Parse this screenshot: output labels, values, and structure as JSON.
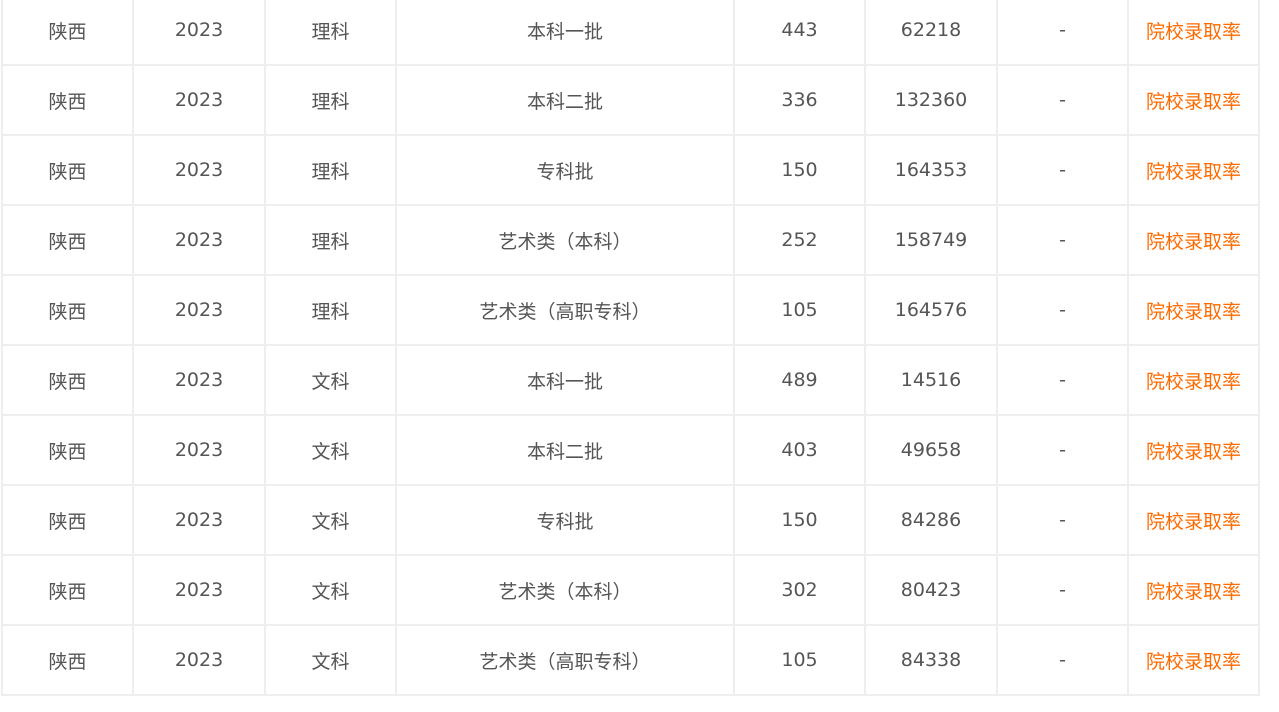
{
  "table": {
    "link_color": "#ff6a00",
    "rows": [
      {
        "province": "陕西",
        "year": "2023",
        "category": "理科",
        "batch": "本科一批",
        "score": "443",
        "rank": "62218",
        "extra": "-",
        "link": "院校录取率"
      },
      {
        "province": "陕西",
        "year": "2023",
        "category": "理科",
        "batch": "本科二批",
        "score": "336",
        "rank": "132360",
        "extra": "-",
        "link": "院校录取率"
      },
      {
        "province": "陕西",
        "year": "2023",
        "category": "理科",
        "batch": "专科批",
        "score": "150",
        "rank": "164353",
        "extra": "-",
        "link": "院校录取率"
      },
      {
        "province": "陕西",
        "year": "2023",
        "category": "理科",
        "batch": "艺术类（本科）",
        "score": "252",
        "rank": "158749",
        "extra": "-",
        "link": "院校录取率"
      },
      {
        "province": "陕西",
        "year": "2023",
        "category": "理科",
        "batch": "艺术类（高职专科）",
        "score": "105",
        "rank": "164576",
        "extra": "-",
        "link": "院校录取率"
      },
      {
        "province": "陕西",
        "year": "2023",
        "category": "文科",
        "batch": "本科一批",
        "score": "489",
        "rank": "14516",
        "extra": "-",
        "link": "院校录取率"
      },
      {
        "province": "陕西",
        "year": "2023",
        "category": "文科",
        "batch": "本科二批",
        "score": "403",
        "rank": "49658",
        "extra": "-",
        "link": "院校录取率"
      },
      {
        "province": "陕西",
        "year": "2023",
        "category": "文科",
        "batch": "专科批",
        "score": "150",
        "rank": "84286",
        "extra": "-",
        "link": "院校录取率"
      },
      {
        "province": "陕西",
        "year": "2023",
        "category": "文科",
        "batch": "艺术类（本科）",
        "score": "302",
        "rank": "80423",
        "extra": "-",
        "link": "院校录取率"
      },
      {
        "province": "陕西",
        "year": "2023",
        "category": "文科",
        "batch": "艺术类（高职专科）",
        "score": "105",
        "rank": "84338",
        "extra": "-",
        "link": "院校录取率"
      }
    ]
  }
}
